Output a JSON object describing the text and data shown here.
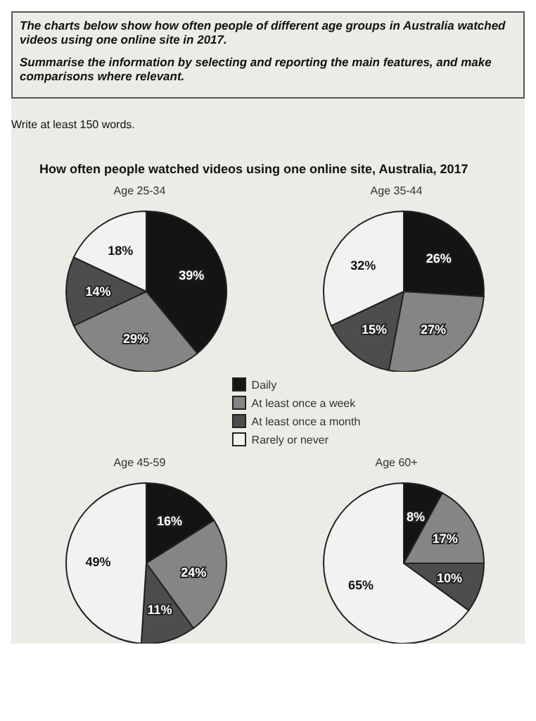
{
  "chart_data": [
    {
      "type": "pie",
      "title": "Age 25-34",
      "annotations": [
        "The charts below show how often people of different age groups in Australia watched videos using one online site in 2017.",
        "Summarise the information by selecting and reporting the main features, and make comparisons where relevant.",
        "Write at least 150 words.",
        "How often people watched videos using one online site, Australia, 2017"
      ],
      "categories": [
        "Daily",
        "At least once a week",
        "At least once a month",
        "Rarely or never"
      ],
      "values": [
        39,
        29,
        14,
        18
      ],
      "value_labels": [
        "39%",
        "29%",
        "14%",
        "18%"
      ],
      "colors": [
        "#141414",
        "#858585",
        "#4d4d4d",
        "#f2f2f2"
      ],
      "legend": "bottom"
    },
    {
      "type": "pie",
      "title": "Age 35-44",
      "categories": [
        null,
        null,
        null,
        null
      ],
      "values": [
        26,
        27,
        15,
        32
      ],
      "value_labels": [
        "26%",
        "27%",
        "15%",
        "32%"
      ],
      "colors": [
        "#141414",
        "#858585",
        "#4d4d4d",
        "#f2f2f2"
      ]
    },
    {
      "type": "pie",
      "title": "Age 45-59",
      "categories": [
        null,
        null,
        null,
        null
      ],
      "values": [
        16,
        24,
        11,
        49
      ],
      "value_labels": [
        "16%",
        "24%",
        "11%",
        "49%"
      ],
      "colors": [
        "#141414",
        "#858585",
        "#4d4d4d",
        "#f2f2f2"
      ]
    },
    {
      "type": "pie",
      "title": "Age 60+",
      "categories": [
        null,
        null,
        null,
        null
      ],
      "values": [
        8,
        17,
        10,
        65
      ],
      "value_labels": [
        "8%",
        "17%",
        "10%",
        "65%"
      ],
      "colors": [
        "#141414",
        "#858585",
        "#4d4d4d",
        "#f2f2f2"
      ]
    }
  ]
}
